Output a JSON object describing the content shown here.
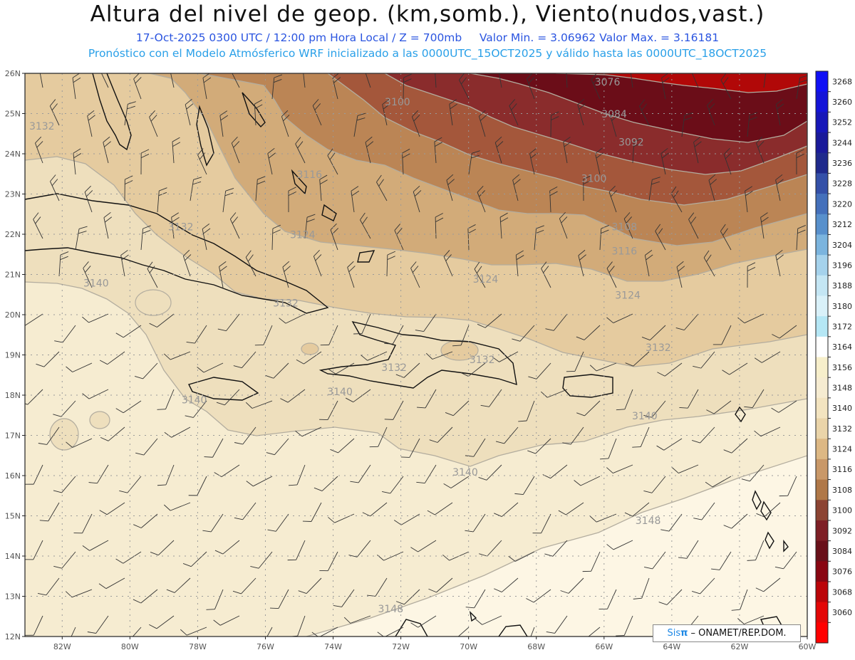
{
  "header": {
    "title": "Altura del nivel de geop. (km,somb.), Viento(nudos,vast.)",
    "line1_left": "17-Oct-2025  0300 UTC / 12:00 pm Hora Local / Z = 700mb",
    "line1_right": "Valor Min. = 3.06962  Valor Max. = 3.16181",
    "line2": "Pronóstico con el Modelo Atmósferico WRF inicializado a las 0000UTC_15OCT2025 y válido hasta las  0000UTC_18OCT2025"
  },
  "map": {
    "lat_labels": [
      "26N",
      "25N",
      "24N",
      "23N",
      "22N",
      "21N",
      "20N",
      "19N",
      "18N",
      "17N",
      "16N",
      "15N",
      "14N",
      "13N",
      "12N"
    ],
    "lon_labels": [
      "82W",
      "80W",
      "78W",
      "76W",
      "74W",
      "72W",
      "70W",
      "68W",
      "66W",
      "64W",
      "62W",
      "60W"
    ],
    "contour_labels": [
      {
        "text": "3076",
        "lon": -65.9,
        "lat": 25.7
      },
      {
        "text": "3084",
        "lon": -65.7,
        "lat": 24.9
      },
      {
        "text": "3092",
        "lon": -65.2,
        "lat": 24.2
      },
      {
        "text": "3100",
        "lon": -72.1,
        "lat": 25.2
      },
      {
        "text": "3100",
        "lon": -66.3,
        "lat": 23.3
      },
      {
        "text": "3108",
        "lon": -65.4,
        "lat": 22.1
      },
      {
        "text": "3116",
        "lon": -74.7,
        "lat": 23.4
      },
      {
        "text": "3116",
        "lon": -65.4,
        "lat": 21.5
      },
      {
        "text": "3124",
        "lon": -74.9,
        "lat": 21.9
      },
      {
        "text": "3124",
        "lon": -69.5,
        "lat": 20.8
      },
      {
        "text": "3124",
        "lon": -65.3,
        "lat": 20.4
      },
      {
        "text": "3132",
        "lon": -82.6,
        "lat": 24.6
      },
      {
        "text": "3132",
        "lon": -78.5,
        "lat": 22.1
      },
      {
        "text": "3132",
        "lon": -75.4,
        "lat": 20.2
      },
      {
        "text": "3132",
        "lon": -72.2,
        "lat": 18.6
      },
      {
        "text": "3132",
        "lon": -69.6,
        "lat": 18.8
      },
      {
        "text": "3132",
        "lon": -64.4,
        "lat": 19.1
      },
      {
        "text": "3140",
        "lon": -81.0,
        "lat": 20.7
      },
      {
        "text": "3140",
        "lon": -73.8,
        "lat": 18.0
      },
      {
        "text": "3140",
        "lon": -78.1,
        "lat": 17.8
      },
      {
        "text": "3140",
        "lon": -64.8,
        "lat": 17.4
      },
      {
        "text": "3140",
        "lon": -70.1,
        "lat": 16.0
      },
      {
        "text": "3148",
        "lon": -64.7,
        "lat": 14.8
      },
      {
        "text": "3148",
        "lon": -72.3,
        "lat": 12.6
      }
    ]
  },
  "colorbar": {
    "levels": [
      "3268",
      "3260",
      "3252",
      "3244",
      "3236",
      "3228",
      "3220",
      "3212",
      "3204",
      "3196",
      "3188",
      "3180",
      "3172",
      "3164",
      "3156",
      "3148",
      "3140",
      "3132",
      "3124",
      "3116",
      "3108",
      "3100",
      "3092",
      "3084",
      "3076",
      "3068",
      "3060"
    ],
    "colors": [
      "#1010f5",
      "#1414d8",
      "#1717b8",
      "#1a1a9a",
      "#1f2a8c",
      "#3450a8",
      "#4470bb",
      "#5890cc",
      "#7bb4de",
      "#a5d2ec",
      "#c4e6f4",
      "#d9f1f9",
      "#b5e7f5",
      "#ffffff",
      "#f7efcb",
      "#f6ecd1",
      "#f3e4c0",
      "#ead4a9",
      "#ddb884",
      "#c99868",
      "#b07848",
      "#8c4433",
      "#7e1f26",
      "#69101a",
      "#890612",
      "#bb0509",
      "#e30707",
      "#ff0000"
    ]
  },
  "palette": {
    "c3148": "#fdf6e4",
    "c3140": "#f6ecd1",
    "c3132": "#eedfbd",
    "c3124": "#e5cb9f",
    "c3116": "#d2ab79",
    "c3108": "#bb8555",
    "c3100": "#a4573b",
    "c3092": "#8a2c2c",
    "c3084": "#6b0d18",
    "c3076": "#b10808",
    "contour": "#b3ad9f",
    "land": "#111111",
    "grid": "#9a9a9a"
  },
  "credit": {
    "brand": "Sis",
    "brand_symbol": "π",
    "suffix": " –  ONAMET/REP.DOM."
  }
}
